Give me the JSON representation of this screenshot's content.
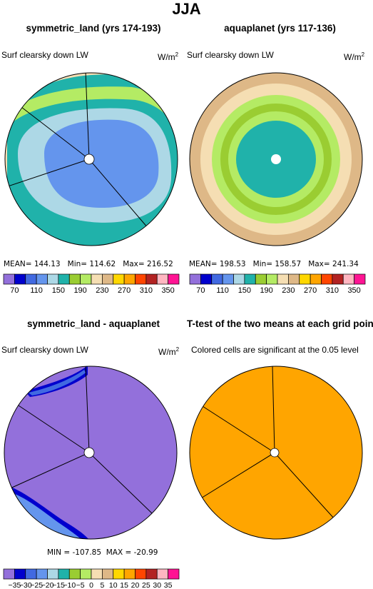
{
  "main_title": "JJA",
  "panels": {
    "p1": {
      "title": "symmetric_land (yrs 174-193)",
      "subtitle": "Surf clearsky down LW",
      "units": "W/m",
      "units_exp": "2",
      "stats": {
        "mean_label": "MEAN=",
        "mean": "144.13",
        "min_label": "Min=",
        "min": "114.62",
        "max_label": "Max=",
        "max": "216.52"
      }
    },
    "p2": {
      "title": "aquaplanet (yrs 117-136)",
      "subtitle": "Surf clearsky down LW",
      "units": "W/m",
      "units_exp": "2",
      "stats": {
        "mean_label": "MEAN=",
        "mean": "198.53",
        "min_label": "Min=",
        "min": "158.57",
        "max_label": "Max=",
        "max": "241.34"
      }
    },
    "p3": {
      "title": "symmetric_land - aquaplanet",
      "subtitle": "Surf clearsky down LW",
      "units": "W/m",
      "units_exp": "2",
      "stats": {
        "min_label": "MIN =",
        "min": "-107.85",
        "max_label": "MAX =",
        "max": "-20.99"
      }
    },
    "p4": {
      "title": "T-test of the two means at each grid point",
      "subtitle": "Colored cells are significant at the 0.05 level"
    }
  },
  "colorbar_abs": {
    "colors": [
      "#9370db",
      "#0000cd",
      "#4169e1",
      "#6495ed",
      "#add8e6",
      "#20b2aa",
      "#9acd32",
      "#b4eb64",
      "#f5deb3",
      "#deb887",
      "#ffd700",
      "#ffa500",
      "#ff4500",
      "#b22222",
      "#ffb6c1",
      "#ff1493"
    ],
    "labels": [
      "70",
      "110",
      "150",
      "190",
      "230",
      "270",
      "310",
      "350"
    ]
  },
  "colorbar_diff": {
    "colors": [
      "#9370db",
      "#0000cd",
      "#4169e1",
      "#6495ed",
      "#add8e6",
      "#20b2aa",
      "#9acd32",
      "#b4eb64",
      "#f5deb3",
      "#deb887",
      "#ffd700",
      "#ffa500",
      "#ff4500",
      "#b22222",
      "#ffb6c1",
      "#ff1493"
    ],
    "labels": [
      "−35",
      "−30",
      "−25",
      "−20",
      "−15",
      "−10",
      "−5",
      "0",
      "5",
      "10",
      "15",
      "20",
      "25",
      "30",
      "35"
    ]
  },
  "chart_data": [
    {
      "type": "heatmap",
      "title": "symmetric_land (yrs 174-193)",
      "variable": "Surf clearsky down LW",
      "units": "W/m2",
      "projection": "polar",
      "mean": 144.13,
      "min": 114.62,
      "max": 216.52,
      "levels": [
        70,
        90,
        110,
        130,
        150,
        170,
        190,
        210,
        230,
        250,
        270,
        290,
        310,
        330,
        350
      ],
      "rings_outer_to_inner": [
        "#f5deb3",
        "#20b2aa",
        "#b4eb64",
        "#20b2aa",
        "#add8e6",
        "#6495ed"
      ]
    },
    {
      "type": "heatmap",
      "title": "aquaplanet (yrs 117-136)",
      "variable": "Surf clearsky down LW",
      "units": "W/m2",
      "projection": "polar",
      "mean": 198.53,
      "min": 158.57,
      "max": 241.34,
      "levels": [
        70,
        90,
        110,
        130,
        150,
        170,
        190,
        210,
        230,
        250,
        270,
        290,
        310,
        330,
        350
      ],
      "rings_outer_to_inner": [
        "#deb887",
        "#f5deb3",
        "#b4eb64",
        "#9acd32",
        "#b4eb64",
        "#20b2aa"
      ]
    },
    {
      "type": "heatmap",
      "title": "symmetric_land - aquaplanet",
      "variable": "Surf clearsky down LW",
      "units": "W/m2",
      "projection": "polar",
      "min": -107.85,
      "max": -20.99,
      "levels": [
        -35,
        -30,
        -25,
        -20,
        -15,
        -10,
        -5,
        0,
        5,
        10,
        15,
        20,
        25,
        30,
        35
      ],
      "dominant_color": "#9370db"
    },
    {
      "type": "heatmap",
      "title": "T-test of the two means at each grid point",
      "projection": "polar",
      "significance_level": 0.05,
      "fill_color": "#ffa500"
    }
  ]
}
